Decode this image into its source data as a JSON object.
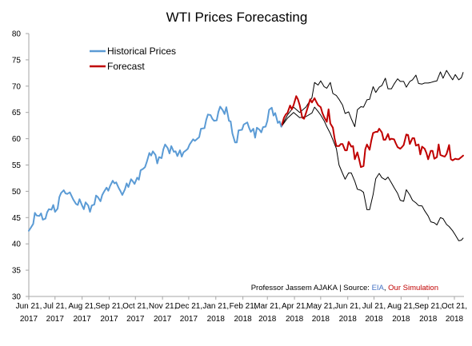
{
  "chart_data": {
    "type": "line",
    "title": "WTI Prices Forecasting",
    "xlabel": "",
    "ylabel": "",
    "ylim": [
      30,
      80
    ],
    "yticks": [
      30,
      35,
      40,
      45,
      50,
      55,
      60,
      65,
      70,
      75,
      80
    ],
    "xlim": [
      "2017-06-21",
      "2018-11-01"
    ],
    "xticks": [
      {
        "date": "2017-06-21",
        "label": [
          "Jun 21,",
          "2017"
        ]
      },
      {
        "date": "2017-07-21",
        "label": [
          "Jul 21,",
          "2017"
        ]
      },
      {
        "date": "2017-08-21",
        "label": [
          "Aug 21,",
          "2017"
        ]
      },
      {
        "date": "2017-09-21",
        "label": [
          "Sep 21,",
          "2017"
        ]
      },
      {
        "date": "2017-10-21",
        "label": [
          "Oct 21,",
          "2017"
        ]
      },
      {
        "date": "2017-11-21",
        "label": [
          "Nov 21,",
          "2017"
        ]
      },
      {
        "date": "2017-12-21",
        "label": [
          "Dec 21,",
          "2017"
        ]
      },
      {
        "date": "2018-01-21",
        "label": [
          "Jan 21,",
          "2018"
        ]
      },
      {
        "date": "2018-02-21",
        "label": [
          "Feb 21,",
          "2018"
        ]
      },
      {
        "date": "2018-03-21",
        "label": [
          "Mar 21,",
          "2018"
        ]
      },
      {
        "date": "2018-04-21",
        "label": [
          "Apr 21,",
          "2018"
        ]
      },
      {
        "date": "2018-05-21",
        "label": [
          "May 21,",
          "2018"
        ]
      },
      {
        "date": "2018-06-21",
        "label": [
          "Jun 21,",
          "2018"
        ]
      },
      {
        "date": "2018-07-21",
        "label": [
          "Jul 21,",
          "2018"
        ]
      },
      {
        "date": "2018-08-21",
        "label": [
          "Aug 21,",
          "2018"
        ]
      },
      {
        "date": "2018-09-21",
        "label": [
          "Sep 21,",
          "2018"
        ]
      },
      {
        "date": "2018-10-21",
        "label": [
          "Oct 21,",
          "2018"
        ]
      }
    ],
    "grid": false,
    "legend_position": "top-left",
    "series": [
      {
        "name": "Historical Prices",
        "color": "#5b9bd5",
        "x": [
          "2017-06-21",
          "2017-06-23",
          "2017-06-26",
          "2017-06-28",
          "2017-06-30",
          "2017-07-03",
          "2017-07-05",
          "2017-07-07",
          "2017-07-10",
          "2017-07-12",
          "2017-07-14",
          "2017-07-17",
          "2017-07-19",
          "2017-07-21",
          "2017-07-24",
          "2017-07-26",
          "2017-07-28",
          "2017-07-31",
          "2017-08-02",
          "2017-08-04",
          "2017-08-07",
          "2017-08-09",
          "2017-08-11",
          "2017-08-14",
          "2017-08-16",
          "2017-08-18",
          "2017-08-21",
          "2017-08-23",
          "2017-08-25",
          "2017-08-28",
          "2017-08-30",
          "2017-09-01",
          "2017-09-04",
          "2017-09-06",
          "2017-09-08",
          "2017-09-11",
          "2017-09-13",
          "2017-09-15",
          "2017-09-18",
          "2017-09-20",
          "2017-09-22",
          "2017-09-25",
          "2017-09-27",
          "2017-09-29",
          "2017-10-02",
          "2017-10-04",
          "2017-10-06",
          "2017-10-09",
          "2017-10-11",
          "2017-10-13",
          "2017-10-16",
          "2017-10-18",
          "2017-10-20",
          "2017-10-23",
          "2017-10-25",
          "2017-10-27",
          "2017-10-30",
          "2017-11-01",
          "2017-11-03",
          "2017-11-06",
          "2017-11-08",
          "2017-11-10",
          "2017-11-13",
          "2017-11-15",
          "2017-11-17",
          "2017-11-20",
          "2017-11-22",
          "2017-11-24",
          "2017-11-27",
          "2017-11-29",
          "2017-12-01",
          "2017-12-04",
          "2017-12-06",
          "2017-12-08",
          "2017-12-11",
          "2017-12-13",
          "2017-12-15",
          "2017-12-18",
          "2017-12-20",
          "2017-12-22",
          "2017-12-26",
          "2017-12-28",
          "2018-01-02",
          "2018-01-04",
          "2018-01-08",
          "2018-01-10",
          "2018-01-12",
          "2018-01-15",
          "2018-01-17",
          "2018-01-19",
          "2018-01-22",
          "2018-01-24",
          "2018-01-26",
          "2018-01-29",
          "2018-01-31",
          "2018-02-02",
          "2018-02-05",
          "2018-02-07",
          "2018-02-09",
          "2018-02-12",
          "2018-02-14",
          "2018-02-16",
          "2018-02-20",
          "2018-02-22",
          "2018-02-26",
          "2018-02-28",
          "2018-03-02",
          "2018-03-05",
          "2018-03-07",
          "2018-03-09",
          "2018-03-12",
          "2018-03-14",
          "2018-03-16",
          "2018-03-19",
          "2018-03-21",
          "2018-03-23",
          "2018-03-26",
          "2018-03-28",
          "2018-03-30",
          "2018-04-02",
          "2018-04-04",
          "2018-04-06"
        ],
        "values": [
          42.5,
          43.0,
          43.8,
          45.9,
          45.4,
          45.3,
          45.8,
          44.6,
          44.8,
          46.0,
          46.6,
          46.5,
          47.4,
          46.1,
          46.7,
          48.9,
          49.7,
          50.2,
          49.6,
          49.5,
          49.8,
          49.1,
          48.4,
          47.6,
          47.4,
          48.5,
          47.3,
          46.6,
          47.9,
          47.3,
          46.1,
          47.3,
          47.5,
          49.2,
          48.9,
          48.1,
          49.3,
          49.9,
          50.7,
          50.1,
          51.0,
          52.0,
          51.5,
          51.7,
          50.6,
          50.0,
          49.3,
          50.4,
          51.5,
          50.8,
          52.3,
          51.9,
          51.4,
          52.6,
          52.2,
          54.0,
          54.3,
          54.6,
          55.6,
          57.3,
          56.8,
          57.6,
          56.9,
          55.3,
          56.5,
          56.3,
          58.0,
          58.9,
          58.2,
          57.2,
          58.6,
          57.5,
          57.6,
          56.7,
          57.8,
          56.6,
          57.4,
          57.8,
          58.1,
          58.9,
          59.9,
          59.6,
          60.3,
          61.9,
          62.0,
          63.6,
          64.6,
          64.5,
          63.8,
          63.4,
          63.5,
          65.1,
          66.1,
          65.4,
          64.7,
          66.0,
          63.4,
          63.3,
          61.0,
          59.3,
          59.3,
          61.6,
          61.7,
          62.7,
          63.1,
          62.1,
          61.3,
          61.9,
          60.2,
          62.1,
          61.7,
          61.2,
          62.2,
          62.3,
          63.4,
          65.5,
          65.9,
          64.4,
          64.9,
          63.0,
          63.3,
          62.3
        ]
      },
      {
        "name": "Forecast",
        "color": "#c00000",
        "x": [
          "2018-04-06",
          "2018-04-09",
          "2018-04-11",
          "2018-04-13",
          "2018-04-16",
          "2018-04-18",
          "2018-04-20",
          "2018-04-23",
          "2018-04-25",
          "2018-04-27",
          "2018-04-30",
          "2018-05-02",
          "2018-05-04",
          "2018-05-07",
          "2018-05-09",
          "2018-05-11",
          "2018-05-14",
          "2018-05-16",
          "2018-05-18",
          "2018-05-21",
          "2018-05-23",
          "2018-05-25",
          "2018-05-28",
          "2018-05-30",
          "2018-06-01",
          "2018-06-04",
          "2018-06-06",
          "2018-06-08",
          "2018-06-11",
          "2018-06-13",
          "2018-06-15",
          "2018-06-18",
          "2018-06-20",
          "2018-06-22",
          "2018-06-25",
          "2018-06-27",
          "2018-06-29",
          "2018-07-02",
          "2018-07-04",
          "2018-07-06",
          "2018-07-09",
          "2018-07-11",
          "2018-07-13",
          "2018-07-16",
          "2018-07-18",
          "2018-07-20",
          "2018-07-23",
          "2018-07-25",
          "2018-07-27",
          "2018-07-30",
          "2018-08-01",
          "2018-08-03",
          "2018-08-06",
          "2018-08-08",
          "2018-08-10",
          "2018-08-13",
          "2018-08-15",
          "2018-08-17",
          "2018-08-20",
          "2018-08-22",
          "2018-08-24",
          "2018-08-27",
          "2018-08-29",
          "2018-08-31",
          "2018-09-03",
          "2018-09-05",
          "2018-09-07",
          "2018-09-10",
          "2018-09-12",
          "2018-09-14",
          "2018-09-17",
          "2018-09-19",
          "2018-09-21",
          "2018-09-24",
          "2018-09-26",
          "2018-09-28",
          "2018-10-01",
          "2018-10-03",
          "2018-10-05",
          "2018-10-08",
          "2018-10-10",
          "2018-10-12",
          "2018-10-15",
          "2018-10-17",
          "2018-10-19",
          "2018-10-22",
          "2018-10-24",
          "2018-10-26",
          "2018-10-29",
          "2018-10-31"
        ],
        "values": [
          62.3,
          64.0,
          64.6,
          64.9,
          66.3,
          65.6,
          66.4,
          68.1,
          67.5,
          66.4,
          64.0,
          63.8,
          64.8,
          66.4,
          67.5,
          66.9,
          67.7,
          67.0,
          66.4,
          66.0,
          64.9,
          64.1,
          63.2,
          65.6,
          62.9,
          62.1,
          60.0,
          58.6,
          58.6,
          59.0,
          59.0,
          57.8,
          57.8,
          59.4,
          58.5,
          58.6,
          56.1,
          57.4,
          56.1,
          54.6,
          54.8,
          58.0,
          58.9,
          57.9,
          59.7,
          61.1,
          61.3,
          61.3,
          61.9,
          61.2,
          59.8,
          59.8,
          60.9,
          59.8,
          60.0,
          59.9,
          59.1,
          58.4,
          58.1,
          58.4,
          58.8,
          60.8,
          60.7,
          59.0,
          60.1,
          60.1,
          58.7,
          58.9,
          57.0,
          58.5,
          58.1,
          57.3,
          56.1,
          57.7,
          57.7,
          56.2,
          56.5,
          58.9,
          56.9,
          56.7,
          56.6,
          57.1,
          58.8,
          56.1,
          55.9,
          56.2,
          56.1,
          56.1,
          56.5,
          56.8
        ]
      },
      {
        "name": "",
        "color": "#000000",
        "x": [
          "2018-04-06",
          "2018-04-13",
          "2018-04-20",
          "2018-04-27",
          "2018-05-04",
          "2018-05-11",
          "2018-05-14",
          "2018-05-18",
          "2018-05-21",
          "2018-05-25",
          "2018-05-28",
          "2018-06-01",
          "2018-06-04",
          "2018-06-08",
          "2018-06-11",
          "2018-06-15",
          "2018-06-18",
          "2018-06-22",
          "2018-06-25",
          "2018-06-29",
          "2018-07-02",
          "2018-07-06",
          "2018-07-09",
          "2018-07-13",
          "2018-07-16",
          "2018-07-20",
          "2018-07-23",
          "2018-07-27",
          "2018-07-30",
          "2018-08-03",
          "2018-08-06",
          "2018-08-10",
          "2018-08-13",
          "2018-08-17",
          "2018-08-20",
          "2018-08-24",
          "2018-08-27",
          "2018-08-31",
          "2018-09-03",
          "2018-09-07",
          "2018-09-10",
          "2018-09-14",
          "2018-09-17",
          "2018-09-21",
          "2018-09-24",
          "2018-09-28",
          "2018-10-01",
          "2018-10-05",
          "2018-10-08",
          "2018-10-12",
          "2018-10-15",
          "2018-10-19",
          "2018-10-22",
          "2018-10-26",
          "2018-10-29",
          "2018-10-31"
        ],
        "values": [
          62.3,
          64.5,
          66.0,
          65.0,
          66.0,
          67.8,
          70.7,
          70.2,
          71.0,
          69.9,
          69.6,
          70.7,
          68.6,
          68.2,
          67.5,
          66.4,
          64.8,
          65.1,
          63.8,
          62.3,
          65.5,
          66.1,
          66.0,
          67.4,
          67.5,
          69.9,
          68.8,
          69.8,
          70.1,
          71.5,
          69.5,
          69.5,
          70.4,
          71.4,
          70.9,
          70.9,
          69.8,
          70.9,
          71.2,
          72.1,
          70.5,
          70.4,
          70.6,
          70.6,
          70.7,
          70.9,
          71.0,
          72.7,
          71.5,
          73.0,
          72.2,
          71.2,
          72.2,
          71.2,
          71.6,
          72.6
        ]
      },
      {
        "name": "",
        "color": "#000000",
        "x": [
          "2018-04-06",
          "2018-04-13",
          "2018-04-20",
          "2018-04-27",
          "2018-05-04",
          "2018-05-11",
          "2018-05-14",
          "2018-05-18",
          "2018-05-21",
          "2018-05-25",
          "2018-05-28",
          "2018-06-01",
          "2018-06-04",
          "2018-06-08",
          "2018-06-11",
          "2018-06-15",
          "2018-06-18",
          "2018-06-22",
          "2018-06-25",
          "2018-06-29",
          "2018-07-02",
          "2018-07-06",
          "2018-07-09",
          "2018-07-13",
          "2018-07-16",
          "2018-07-20",
          "2018-07-23",
          "2018-07-27",
          "2018-07-30",
          "2018-08-03",
          "2018-08-06",
          "2018-08-10",
          "2018-08-13",
          "2018-08-17",
          "2018-08-20",
          "2018-08-24",
          "2018-08-27",
          "2018-08-31",
          "2018-09-03",
          "2018-09-07",
          "2018-09-10",
          "2018-09-14",
          "2018-09-17",
          "2018-09-21",
          "2018-09-24",
          "2018-09-28",
          "2018-10-01",
          "2018-10-05",
          "2018-10-08",
          "2018-10-12",
          "2018-10-15",
          "2018-10-19",
          "2018-10-22",
          "2018-10-26",
          "2018-10-29",
          "2018-10-31"
        ],
        "values": [
          62.3,
          63.9,
          65.0,
          64.0,
          64.2,
          64.9,
          66.0,
          65.2,
          64.5,
          63.4,
          62.3,
          61.0,
          59.8,
          58.1,
          55.0,
          53.4,
          52.3,
          53.5,
          53.5,
          51.9,
          50.4,
          50.2,
          49.8,
          46.5,
          46.5,
          49.4,
          52.4,
          53.4,
          52.6,
          52.2,
          52.7,
          51.6,
          50.7,
          49.6,
          48.3,
          48.1,
          50.3,
          49.3,
          48.3,
          47.8,
          47.3,
          47.2,
          46.3,
          45.3,
          44.2,
          44.0,
          43.6,
          45.0,
          44.8,
          43.7,
          43.3,
          42.5,
          41.7,
          40.6,
          40.7,
          41.1
        ]
      }
    ],
    "annotation": {
      "prefix": "Professor Jassem AJAKA | Source: ",
      "source1": "EIA",
      "separator": ", ",
      "source2": "Our Simulation",
      "source1_color": "#4472c4",
      "source2_color": "#c00000"
    }
  }
}
